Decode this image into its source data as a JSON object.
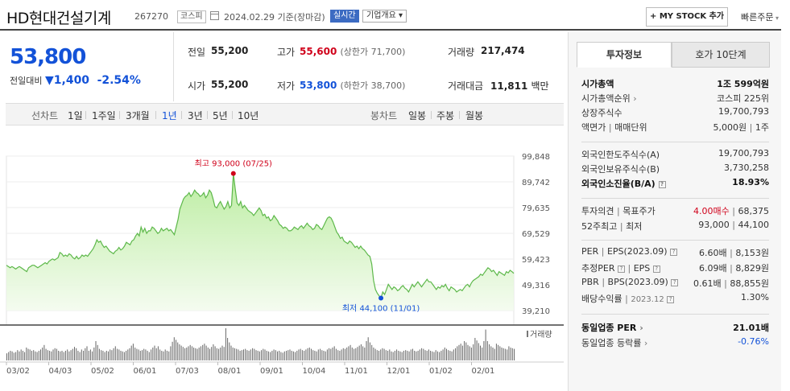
{
  "header": {
    "name": "HD현대건설기계",
    "code": "267270",
    "market": "코스피",
    "date": "2024.02.29",
    "date_suffix": "기준(장마감)",
    "realtime": "실시간",
    "corp_overview": "기업개요",
    "my_stock": "+ MY STOCK 추가",
    "quick_order": "빠른주문"
  },
  "price": {
    "current": "53,800",
    "change_label": "전일대비",
    "change": "1,400",
    "change_pct": "-2.54%"
  },
  "quote": {
    "prev_close_label": "전일",
    "prev_close": "55,200",
    "high_label": "고가",
    "high": "55,600",
    "upper_limit": "(상한가 71,700)",
    "volume_label": "거래량",
    "volume": "217,474",
    "open_label": "시가",
    "open": "55,200",
    "low_label": "저가",
    "low": "53,800",
    "lower_limit": "(하한가 38,700)",
    "amount_label": "거래대금",
    "amount": "11,811",
    "amount_unit": "백만"
  },
  "periods": {
    "line_label": "선차트",
    "line_items": [
      "1일",
      "1주일",
      "3개월",
      "1년",
      "3년",
      "5년",
      "10년"
    ],
    "active": "1년",
    "candle_label": "봉차트",
    "candle_items": [
      "일봉",
      "주봉",
      "월봉"
    ]
  },
  "chart_data": {
    "type": "area",
    "x_range": [
      "2023-03-02",
      "2024-02-29"
    ],
    "x_tick_labels": [
      "03/02",
      "04/03",
      "05/02",
      "06/01",
      "07/03",
      "08/01",
      "09/01",
      "10/04",
      "11/01",
      "12/01",
      "01/02",
      "02/01"
    ],
    "y_tick_labels": [
      "99,848",
      "89,742",
      "79,635",
      "69,529",
      "59,423",
      "49,316",
      "39,210"
    ],
    "ylim": [
      39210,
      99848
    ],
    "series": [
      {
        "name": "",
        "values": [
          57000,
          56500,
          56000,
          56500,
          56000,
          55500,
          56000,
          56500,
          56000,
          55500,
          55000,
          54500,
          56000,
          56500,
          57000,
          57000,
          56500,
          56000,
          56500,
          57000,
          57500,
          58000,
          57500,
          58500,
          59000,
          59500,
          59000,
          59500,
          60000,
          62000,
          61500,
          60500,
          61000,
          60500,
          61500,
          61000,
          60000,
          59500,
          60500,
          59500,
          60000,
          61000,
          60500,
          61000,
          60500,
          61500,
          62500,
          63500,
          65000,
          67000,
          66000,
          66500,
          65000,
          64000,
          64500,
          63500,
          62500,
          62000,
          61500,
          62500,
          63000,
          64000,
          63000,
          63500,
          64500,
          66000,
          65500,
          65000,
          66500,
          67000,
          68500,
          69500,
          68500,
          72000,
          70000,
          71500,
          69500,
          70500,
          70500,
          72000,
          71500,
          70500,
          69500,
          70000,
          71500,
          70500,
          71000,
          71500,
          70500,
          71000,
          70000,
          69000,
          72000,
          75000,
          79000,
          81000,
          83000,
          84000,
          84500,
          85500,
          84000,
          85000,
          86500,
          85500,
          85000,
          84000,
          84500,
          85500,
          83500,
          84500,
          86500,
          85500,
          83000,
          80000,
          79500,
          81000,
          82000,
          80500,
          79000,
          80000,
          82000,
          79500,
          80500,
          93000,
          87000,
          81500,
          80500,
          82000,
          79500,
          80500,
          79500,
          78500,
          78000,
          77500,
          76500,
          77500,
          78500,
          79500,
          78500,
          76500,
          77000,
          75500,
          76000,
          74500,
          75000,
          76500,
          75500,
          74500,
          73000,
          72500,
          71500,
          72000,
          71500,
          70500,
          70500,
          71000,
          72000,
          71500,
          71000,
          72000,
          72500,
          71500,
          72500,
          73500,
          72500,
          72000,
          71000,
          71500,
          73000,
          72500,
          71500,
          71000,
          72500,
          74000,
          75500,
          76000,
          75500,
          74000,
          72000,
          70000,
          69000,
          67500,
          68000,
          66500,
          66000,
          65500,
          66500,
          66000,
          65000,
          64000,
          64500,
          63500,
          64500,
          63500,
          63000,
          62000,
          61000,
          60500,
          57500,
          51000,
          47500,
          46000,
          45000,
          44100,
          46500,
          45500,
          47500,
          49500,
          48500,
          47500,
          48500,
          48000,
          47000,
          47500,
          48500,
          49000,
          48000,
          47500,
          46500,
          48000,
          49500,
          48500,
          49500,
          50500,
          49500,
          48500,
          49500,
          50500,
          51500,
          50500,
          50500,
          49500,
          48500,
          47500,
          48500,
          48000,
          49000,
          48500,
          49500,
          48000,
          47000,
          48500,
          48000,
          47500,
          46500,
          47000,
          47500,
          47000,
          48000,
          49000,
          49500,
          48500,
          50000,
          51000,
          51500,
          52000,
          52500,
          53500,
          53000,
          54000,
          55000,
          56000,
          55500,
          54500,
          55000,
          54000,
          53000,
          54500,
          54000,
          53500,
          53000,
          54500,
          54000,
          55000,
          54500,
          53800
        ],
        "color": "#5db84a"
      }
    ],
    "annotations": [
      {
        "text": "최고 93,000 (07/25)",
        "value": 93000,
        "date": "07/25",
        "color": "#d0021b"
      },
      {
        "text": "최저 44,100 (11/01)",
        "value": 44100,
        "date": "11/01",
        "color": "#1352d8"
      }
    ],
    "volume_label": "거래량",
    "volume": [
      22,
      26,
      30,
      28,
      24,
      26,
      32,
      28,
      34,
      30,
      26,
      40,
      36,
      34,
      30,
      32,
      28,
      26,
      30,
      34,
      40,
      48,
      36,
      32,
      30,
      28,
      34,
      38,
      36,
      30,
      28,
      30,
      26,
      30,
      34,
      28,
      32,
      36,
      42,
      38,
      30,
      26,
      34,
      30,
      38,
      44,
      30,
      34,
      28,
      40,
      60,
      48,
      36,
      32,
      30,
      26,
      30,
      28,
      34,
      32,
      38,
      44,
      36,
      34,
      30,
      28,
      26,
      30,
      34,
      38,
      46,
      52,
      40,
      36,
      34,
      30,
      32,
      36,
      34,
      30,
      26,
      34,
      40,
      46,
      38,
      44,
      34,
      30,
      28,
      34,
      30,
      28,
      44,
      58,
      72,
      64,
      56,
      50,
      46,
      42,
      38,
      40,
      44,
      48,
      44,
      40,
      38,
      36,
      40,
      44,
      48,
      52,
      46,
      40,
      36,
      42,
      50,
      44,
      38,
      36,
      40,
      46,
      42,
      100,
      70,
      56,
      46,
      40,
      38,
      36,
      34,
      30,
      32,
      34,
      36,
      32,
      30,
      34,
      38,
      36,
      32,
      30,
      28,
      32,
      36,
      34,
      30,
      28,
      26,
      30,
      34,
      32,
      28,
      30,
      26,
      24,
      28,
      30,
      32,
      34,
      30,
      28,
      26,
      30,
      34,
      36,
      32,
      30,
      34,
      38,
      40,
      36,
      32,
      30,
      28,
      34,
      36,
      32,
      30,
      28,
      34,
      38,
      36,
      40,
      44,
      36,
      32,
      30,
      34,
      38,
      36,
      40,
      44,
      48,
      40,
      36,
      38,
      42,
      46,
      50,
      44,
      40,
      60,
      72,
      56,
      48,
      40,
      36,
      32,
      30,
      34,
      38,
      36,
      32,
      30,
      34,
      28,
      26,
      30,
      34,
      30,
      28,
      26,
      30,
      32,
      30,
      28,
      34,
      36,
      30,
      28,
      30,
      34,
      38,
      36,
      32,
      30,
      34,
      30,
      28,
      26,
      32,
      28,
      26,
      30,
      34,
      40,
      36,
      32,
      30,
      28,
      34,
      38,
      44,
      48,
      52,
      46,
      60,
      56,
      48,
      44,
      40,
      50,
      70,
      62,
      54,
      46,
      40,
      60,
      96,
      60,
      50,
      44,
      40,
      36,
      52,
      48,
      44,
      40,
      38,
      36,
      34,
      44,
      40,
      38,
      36
    ]
  },
  "panel": {
    "tab_invest": "투자정보",
    "tab_orderbook": "호가 10단계",
    "market_cap_label": "시가총액",
    "market_cap": "1조 599억원",
    "cap_rank_label": "시가총액순위",
    "cap_rank": "코스피 225위",
    "shares_label": "상장주식수",
    "shares": "19,700,793",
    "par_label": "액면가",
    "unit_label": "매매단위",
    "par": "5,000원",
    "unit": "1주",
    "foreign_limit_label": "외국인한도주식수(A)",
    "foreign_limit": "19,700,793",
    "foreign_hold_label": "외국인보유주식수(B)",
    "foreign_hold": "3,730,258",
    "foreign_ratio_label": "외국인소진율(B/A)",
    "foreign_ratio": "18.93%",
    "opinion_label": "투자의견",
    "target_label": "목표주가",
    "opinion": "4.00매수",
    "target": "68,375",
    "w52_high_label": "52주최고",
    "w52_low_label": "최저",
    "w52_high": "93,000",
    "w52_low": "44,100",
    "per_label": "PER",
    "eps_label": "EPS(2023.09)",
    "per": "6.60배",
    "eps": "8,153원",
    "est_per_label": "추정PER",
    "est_eps_label": "EPS",
    "est_per": "6.09배",
    "est_eps": "8,829원",
    "pbr_label": "PBR",
    "bps_label": "BPS(2023.09)",
    "pbr": "0.61배",
    "bps": "88,855원",
    "div_label": "배당수익률",
    "div_date": "2023.12",
    "div": "1.30%",
    "sector_per_label": "동일업종 PER",
    "sector_per": "21.01배",
    "sector_chg_label": "동일업종 등락률",
    "sector_chg": "-0.76%",
    "hint_mark": "?",
    "sep_mark": "|",
    "arrow_mark": "›"
  }
}
